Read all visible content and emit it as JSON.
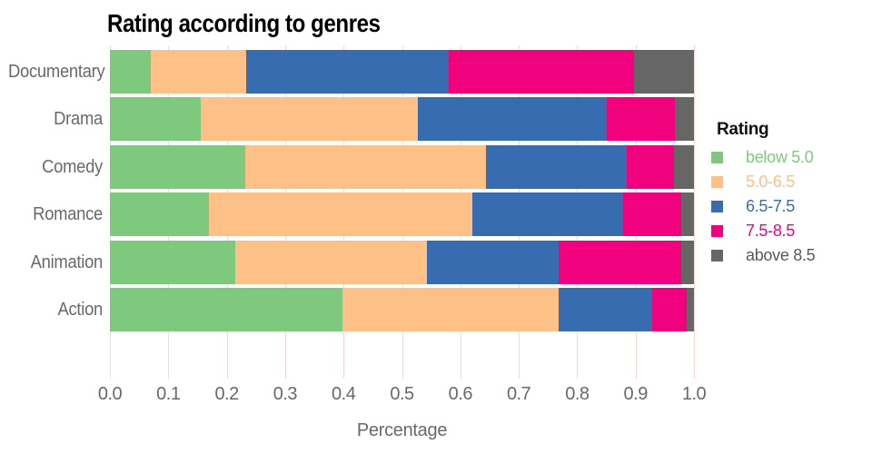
{
  "title": "Rating according to genres",
  "x_axis": {
    "label": "Percentage",
    "ticks": [
      "0.0",
      "0.1",
      "0.2",
      "0.3",
      "0.4",
      "0.5",
      "0.6",
      "0.7",
      "0.8",
      "0.9",
      "1.0"
    ]
  },
  "legend": {
    "title": "Rating",
    "items": [
      {
        "label": "below 5.0",
        "color": "#7fc97f",
        "text_color": "#7fc97f"
      },
      {
        "label": "5.0-6.5",
        "color": "#fdc086",
        "text_color": "#fdc086"
      },
      {
        "label": "6.5-7.5",
        "color": "#386cb0",
        "text_color": "#386cb0"
      },
      {
        "label": "7.5-8.5",
        "color": "#f0027f",
        "text_color": "#f0027f"
      },
      {
        "label": "above 8.5",
        "color": "#666666",
        "text_color": "#595959"
      }
    ]
  },
  "chart_data": {
    "type": "bar",
    "orientation": "horizontal",
    "stacked": true,
    "title": "Rating according to genres",
    "xlabel": "Percentage",
    "ylabel": "",
    "xlim": [
      0,
      1
    ],
    "grid": true,
    "gridline_color": "#f6d7d3",
    "legend_position": "right",
    "categories": [
      "Documentary",
      "Drama",
      "Comedy",
      "Romance",
      "Animation",
      "Action"
    ],
    "series": [
      {
        "name": "below 5.0",
        "color": "#7fc97f",
        "values": [
          0.07,
          0.155,
          0.232,
          0.17,
          0.215,
          0.398
        ]
      },
      {
        "name": "5.0-6.5",
        "color": "#fdc086",
        "values": [
          0.164,
          0.373,
          0.412,
          0.45,
          0.328,
          0.371
        ]
      },
      {
        "name": "6.5-7.5",
        "color": "#386cb0",
        "values": [
          0.346,
          0.322,
          0.241,
          0.258,
          0.226,
          0.159
        ]
      },
      {
        "name": "7.5-8.5",
        "color": "#f0027f",
        "values": [
          0.317,
          0.117,
          0.081,
          0.1,
          0.209,
          0.06
        ]
      },
      {
        "name": "above 8.5",
        "color": "#666666",
        "values": [
          0.103,
          0.033,
          0.034,
          0.022,
          0.022,
          0.012
        ]
      }
    ]
  }
}
